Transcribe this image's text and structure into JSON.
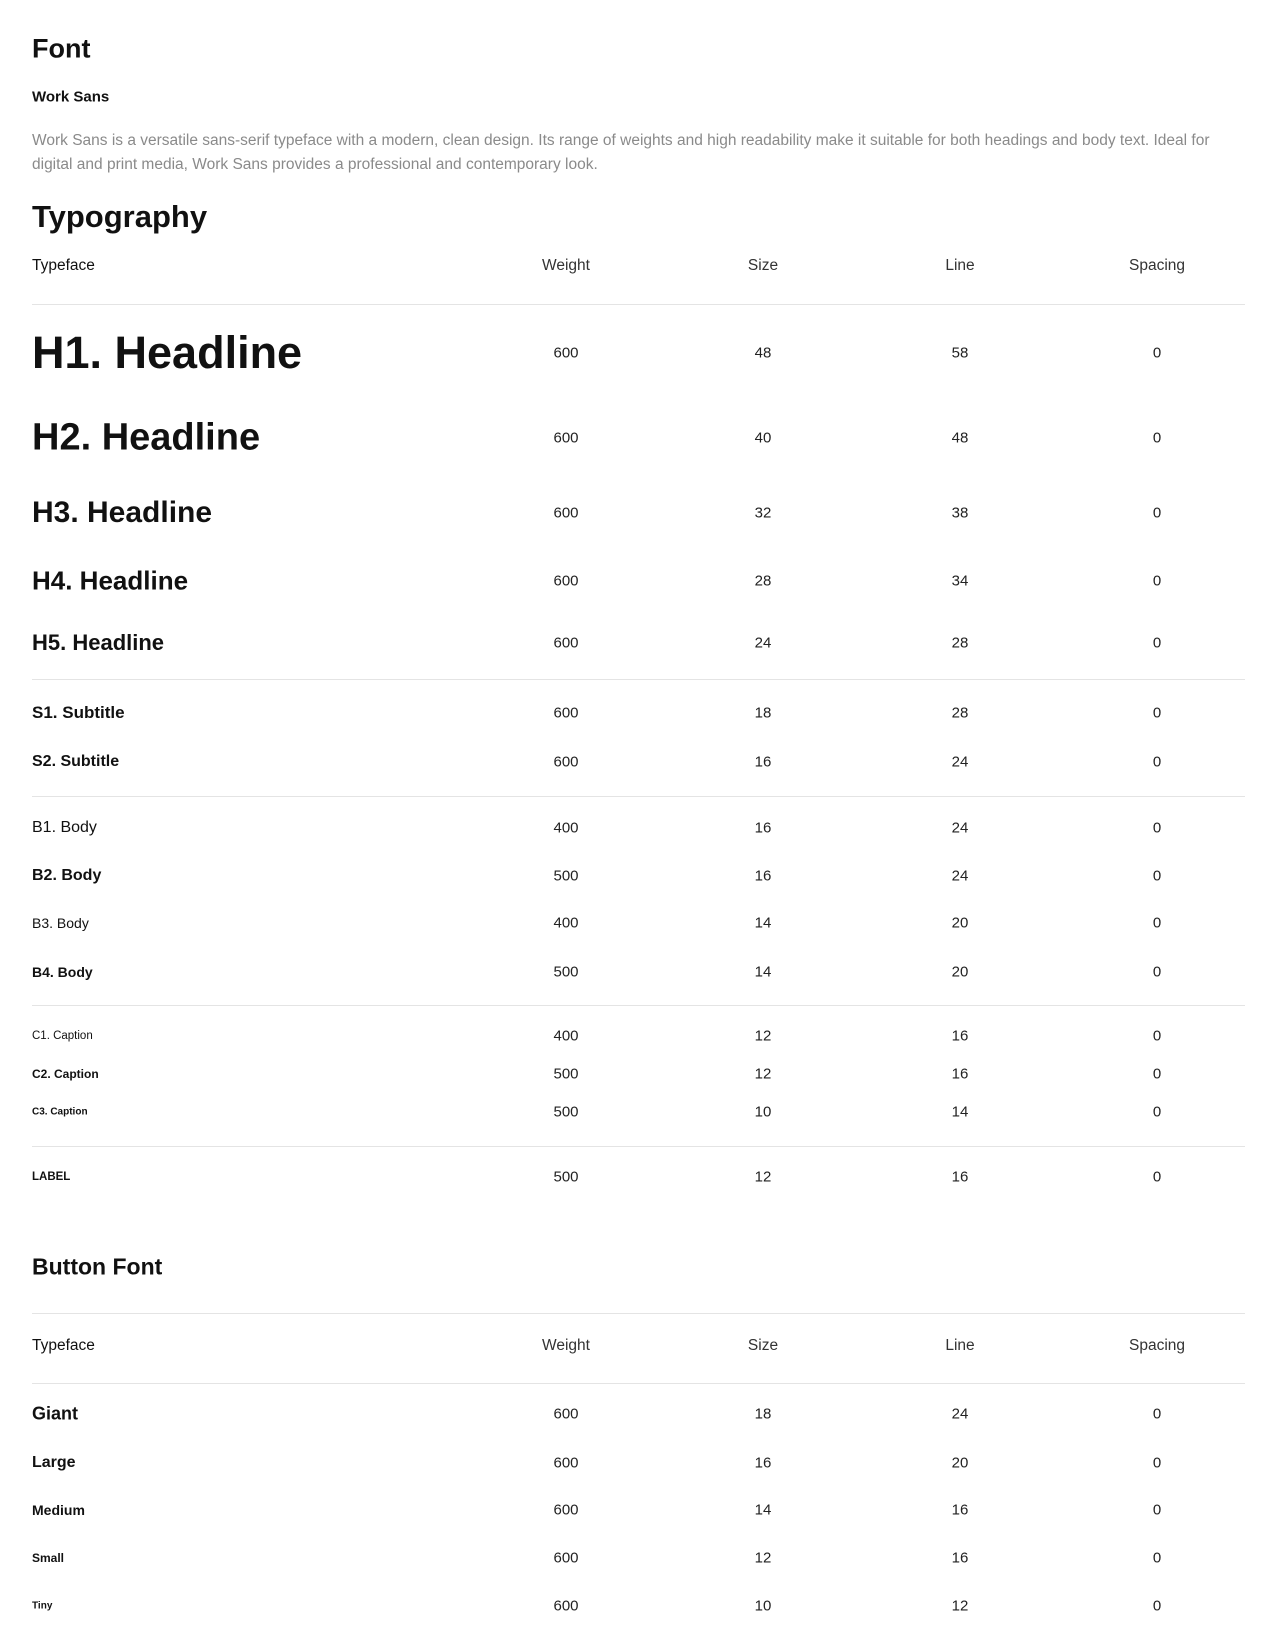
{
  "font_section": {
    "title": "Font",
    "font_name": "Work Sans",
    "description": "Work Sans is a versatile sans-serif typeface with a modern, clean design. Its range of weights and high readability make it suitable for both headings and body text. Ideal for digital and print media, Work Sans provides a professional and contemporary look."
  },
  "typography": {
    "title": "Typography",
    "columns": [
      "Typeface",
      "Weight",
      "Size",
      "Line",
      "Spacing"
    ],
    "rows": [
      {
        "typeface": "H1. Headline",
        "weight": "600",
        "size": "48",
        "line": "58",
        "spacing": "0"
      },
      {
        "typeface": "H2. Headline",
        "weight": "600",
        "size": "40",
        "line": "48",
        "spacing": "0"
      },
      {
        "typeface": "H3. Headline",
        "weight": "600",
        "size": "32",
        "line": "38",
        "spacing": "0"
      },
      {
        "typeface": "H4. Headline",
        "weight": "600",
        "size": "28",
        "line": "34",
        "spacing": "0"
      },
      {
        "typeface": "H5. Headline",
        "weight": "600",
        "size": "24",
        "line": "28",
        "spacing": "0"
      },
      {
        "typeface": "S1. Subtitle",
        "weight": "600",
        "size": "18",
        "line": "28",
        "spacing": "0"
      },
      {
        "typeface": "S2. Subtitle",
        "weight": "600",
        "size": "16",
        "line": "24",
        "spacing": "0"
      },
      {
        "typeface": "B1. Body",
        "weight": "400",
        "size": "16",
        "line": "24",
        "spacing": "0"
      },
      {
        "typeface": "B2. Body",
        "weight": "500",
        "size": "16",
        "line": "24",
        "spacing": "0"
      },
      {
        "typeface": "B3. Body",
        "weight": "400",
        "size": "14",
        "line": "20",
        "spacing": "0"
      },
      {
        "typeface": "B4. Body",
        "weight": "500",
        "size": "14",
        "line": "20",
        "spacing": "0"
      },
      {
        "typeface": "C1. Caption",
        "weight": "400",
        "size": "12",
        "line": "16",
        "spacing": "0"
      },
      {
        "typeface": "C2. Caption",
        "weight": "500",
        "size": "12",
        "line": "16",
        "spacing": "0"
      },
      {
        "typeface": "C3. Caption",
        "weight": "500",
        "size": "10",
        "line": "14",
        "spacing": "0"
      },
      {
        "typeface": "LABEL",
        "weight": "500",
        "size": "12",
        "line": "16",
        "spacing": "0"
      }
    ]
  },
  "button_font": {
    "title": "Button Font",
    "columns": [
      "Typeface",
      "Weight",
      "Size",
      "Line",
      "Spacing"
    ],
    "rows": [
      {
        "typeface": "Giant",
        "weight": "600",
        "size": "18",
        "line": "24",
        "spacing": "0"
      },
      {
        "typeface": "Large",
        "weight": "600",
        "size": "16",
        "line": "20",
        "spacing": "0"
      },
      {
        "typeface": "Medium",
        "weight": "600",
        "size": "14",
        "line": "16",
        "spacing": "0"
      },
      {
        "typeface": "Small",
        "weight": "600",
        "size": "12",
        "line": "16",
        "spacing": "0"
      },
      {
        "typeface": "Tiny",
        "weight": "600",
        "size": "10",
        "line": "12",
        "spacing": "0"
      }
    ]
  }
}
